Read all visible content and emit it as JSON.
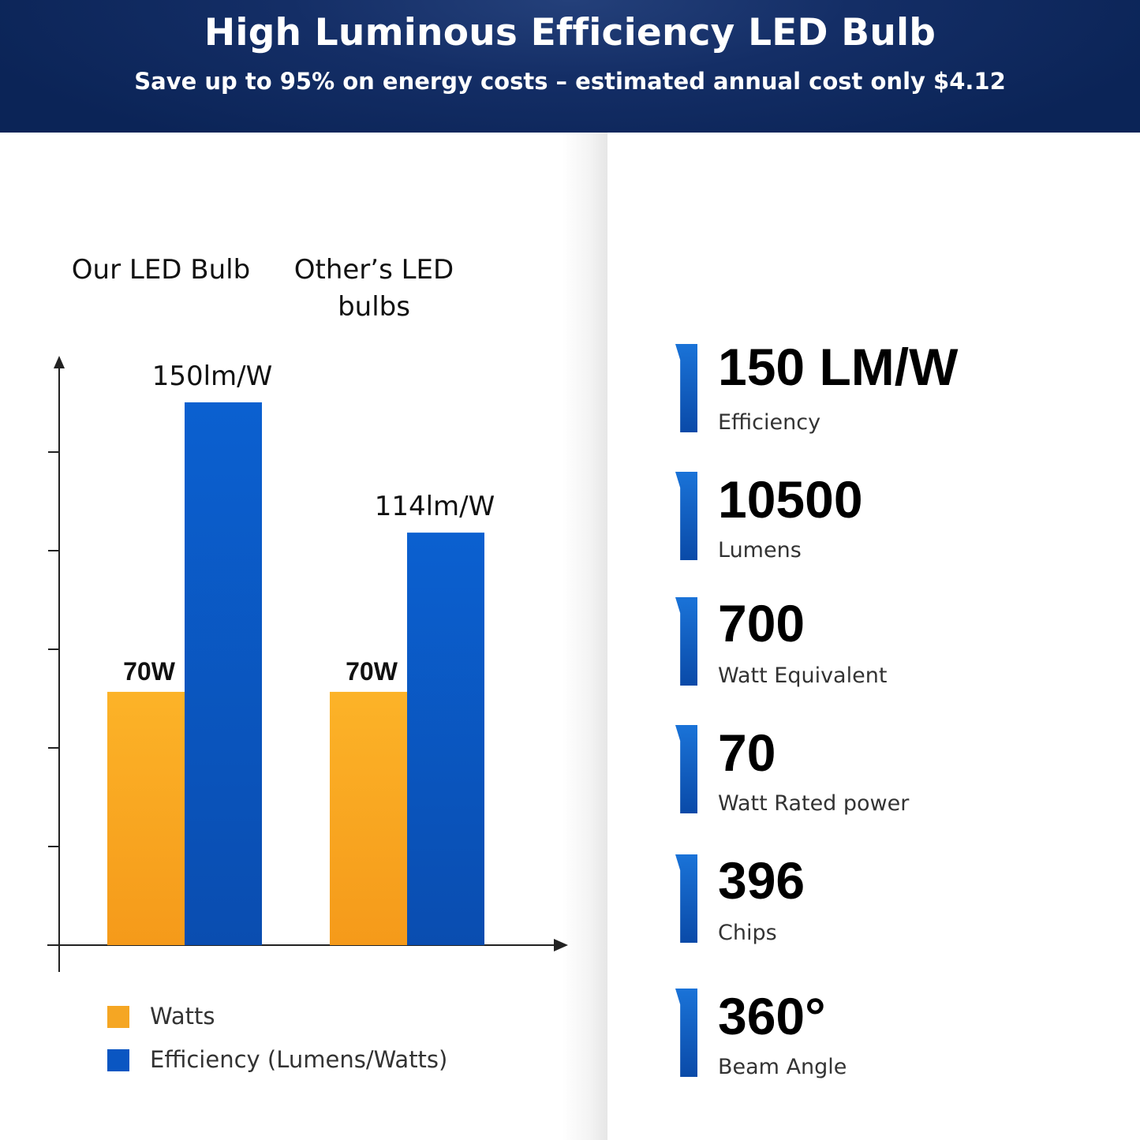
{
  "header": {
    "title": "High Luminous Efficiency LED Bulb",
    "subtitle": "Save up to 95% on energy costs – estimated annual cost only $4.12"
  },
  "colors": {
    "watts": "#f5a623",
    "efficiency": "#0a56c2",
    "header_bg": "#0f2a60"
  },
  "chart_data": {
    "type": "bar",
    "categories": [
      "Our LED Bulb",
      "Other’s LED bulbs"
    ],
    "category_lines": [
      [
        "Our LED Bulb"
      ],
      [
        "Other’s LED",
        "bulbs"
      ]
    ],
    "series": [
      {
        "name": "Watts",
        "values": [
          70,
          70
        ],
        "labels": [
          "70W",
          "70W"
        ]
      },
      {
        "name": "Efficiency (Lumens/Watts)",
        "values": [
          150,
          114
        ],
        "labels": [
          "150lm/W",
          "114lm/W"
        ]
      }
    ],
    "ylim": [
      0,
      165
    ],
    "grid": false,
    "legend_position": "bottom-left"
  },
  "specs": [
    {
      "value": "150 LM/W",
      "label": "Efficiency"
    },
    {
      "value": "10500",
      "label": "Lumens"
    },
    {
      "value": "700",
      "label": "Watt Equivalent"
    },
    {
      "value": "70",
      "label": "Watt Rated power"
    },
    {
      "value": "396",
      "label": "Chips"
    },
    {
      "value": "360°",
      "label": "Beam Angle"
    }
  ]
}
